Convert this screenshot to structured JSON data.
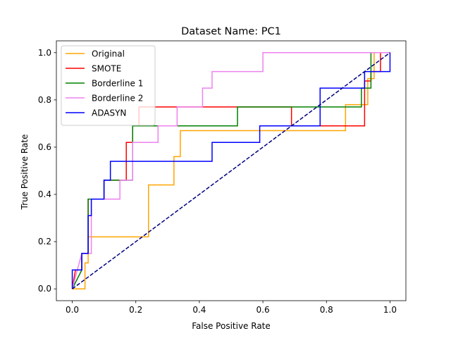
{
  "chart_data": {
    "type": "line",
    "title": "Dataset Name: PC1",
    "xlabel": "False Positive Rate",
    "ylabel": "True Positive Rate",
    "xlim": [
      -0.05,
      1.05
    ],
    "ylim": [
      -0.05,
      1.05
    ],
    "xticks": [
      0.0,
      0.2,
      0.4,
      0.6,
      0.8,
      1.0
    ],
    "yticks": [
      0.0,
      0.2,
      0.4,
      0.6,
      0.8,
      1.0
    ],
    "xtick_labels": [
      "0.0",
      "0.2",
      "0.4",
      "0.6",
      "0.8",
      "1.0"
    ],
    "ytick_labels": [
      "0.0",
      "0.2",
      "0.4",
      "0.6",
      "0.8",
      "1.0"
    ],
    "grid": false,
    "legend_position": "top-left",
    "series": [
      {
        "name": "Original",
        "color": "#ffa500",
        "x": [
          0.0,
          0.0,
          0.04,
          0.04,
          0.05,
          0.05,
          0.06,
          0.06,
          0.24,
          0.24,
          0.32,
          0.32,
          0.34,
          0.34,
          0.86,
          0.86,
          0.93,
          0.93,
          0.95,
          0.95,
          1.0
        ],
        "y": [
          0.0,
          0.0,
          0.0,
          0.11,
          0.11,
          0.22,
          0.22,
          0.22,
          0.22,
          0.44,
          0.44,
          0.56,
          0.56,
          0.67,
          0.67,
          0.78,
          0.78,
          0.89,
          0.89,
          1.0,
          1.0
        ]
      },
      {
        "name": "SMOTE",
        "color": "#ff0000",
        "x": [
          0.0,
          0.01,
          0.03,
          0.03,
          0.05,
          0.05,
          0.1,
          0.1,
          0.17,
          0.17,
          0.19,
          0.19,
          0.21,
          0.21,
          0.69,
          0.69,
          0.92,
          0.92,
          0.94,
          0.94,
          0.97,
          0.97,
          1.0
        ],
        "y": [
          0.0,
          0.08,
          0.08,
          0.15,
          0.15,
          0.38,
          0.38,
          0.46,
          0.46,
          0.62,
          0.62,
          0.69,
          0.69,
          0.77,
          0.77,
          0.69,
          0.69,
          0.88,
          0.88,
          0.92,
          0.92,
          1.0,
          1.0
        ]
      },
      {
        "name": "Borderline 1",
        "color": "#008000",
        "x": [
          0.0,
          0.03,
          0.03,
          0.05,
          0.05,
          0.1,
          0.1,
          0.19,
          0.19,
          0.52,
          0.52,
          0.91,
          0.91,
          0.94,
          0.94,
          1.0
        ],
        "y": [
          0.0,
          0.08,
          0.15,
          0.15,
          0.38,
          0.38,
          0.46,
          0.46,
          0.69,
          0.69,
          0.77,
          0.77,
          0.85,
          0.85,
          1.0,
          1.0
        ]
      },
      {
        "name": "Borderline 2",
        "color": "#ee82ee",
        "x": [
          0.0,
          0.03,
          0.03,
          0.06,
          0.06,
          0.15,
          0.15,
          0.19,
          0.19,
          0.27,
          0.27,
          0.33,
          0.33,
          0.41,
          0.41,
          0.44,
          0.44,
          0.6,
          0.6,
          1.0
        ],
        "y": [
          0.0,
          0.15,
          0.15,
          0.15,
          0.38,
          0.38,
          0.46,
          0.46,
          0.62,
          0.62,
          0.69,
          0.69,
          0.77,
          0.77,
          0.85,
          0.85,
          0.92,
          0.92,
          1.0,
          1.0
        ]
      },
      {
        "name": "ADASYN",
        "color": "#0000ff",
        "x": [
          0.0,
          0.0,
          0.03,
          0.03,
          0.05,
          0.05,
          0.06,
          0.06,
          0.1,
          0.1,
          0.12,
          0.12,
          0.44,
          0.44,
          0.59,
          0.59,
          0.78,
          0.78,
          0.92,
          0.92,
          1.0,
          1.0
        ],
        "y": [
          0.0,
          0.08,
          0.08,
          0.15,
          0.15,
          0.31,
          0.31,
          0.38,
          0.38,
          0.46,
          0.46,
          0.54,
          0.54,
          0.62,
          0.62,
          0.69,
          0.69,
          0.85,
          0.85,
          0.92,
          0.92,
          1.0
        ]
      },
      {
        "color": "#000080",
        "dashed": true,
        "x": [
          0.0,
          1.0
        ],
        "y": [
          0.0,
          1.0
        ]
      }
    ]
  }
}
